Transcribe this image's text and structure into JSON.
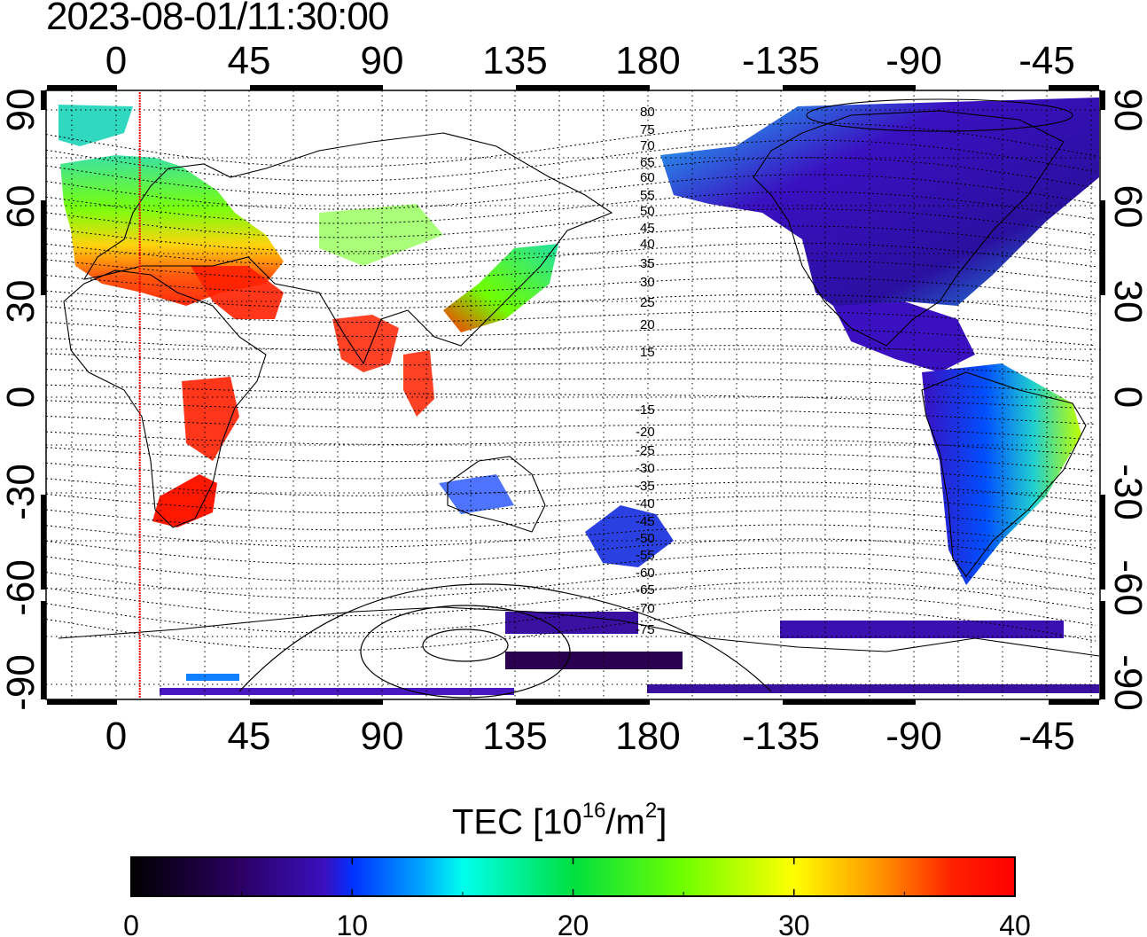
{
  "timestamp": "2023-08-01/11:30:00",
  "map": {
    "top_lon_labels": [
      "0",
      "45",
      "90",
      "135",
      "180",
      "-135",
      "-90",
      "-45"
    ],
    "bottom_lon_labels": [
      "0",
      "45",
      "90",
      "135",
      "180",
      "-135",
      "-90",
      "-45"
    ],
    "left_lat_labels": [
      "90",
      "60",
      "30",
      "0",
      "-30",
      "-60",
      "-90"
    ],
    "right_lat_labels": [
      "90",
      "60",
      "30",
      "0",
      "-30",
      "-60",
      "-90"
    ],
    "contour_labels_north": [
      "80",
      "75",
      "70",
      "65",
      "60",
      "55",
      "50",
      "45",
      "40",
      "35",
      "30",
      "25",
      "20",
      "15"
    ],
    "contour_labels_south": [
      "-15",
      "-20",
      "-25",
      "-30",
      "-35",
      "-40",
      "-45",
      "-50",
      "-55",
      "-60",
      "-65",
      "-70",
      "-75"
    ],
    "marker_line_longitude": 8,
    "grid": "dotted, every 15 degrees",
    "colors": {
      "marker_line": "#ff0000",
      "high_tec_europe_africa": "#ff2200",
      "americas": "#3a10c0",
      "ocean_background": "#ffffff"
    }
  },
  "colorbar": {
    "title_main": "TEC  [10",
    "title_exp": "16",
    "title_unit": "/m",
    "title_unit_exp": "2",
    "title_end": "]",
    "ticks": [
      "0",
      "10",
      "20",
      "30",
      "40"
    ],
    "range": [
      0,
      40
    ],
    "colormap": [
      "#000000",
      "#2a0060",
      "#3a10c0",
      "#0030ff",
      "#00a8ff",
      "#00ffee",
      "#00e040",
      "#70ff00",
      "#ffff00",
      "#ff9000",
      "#ff2000",
      "#ff0000"
    ]
  }
}
